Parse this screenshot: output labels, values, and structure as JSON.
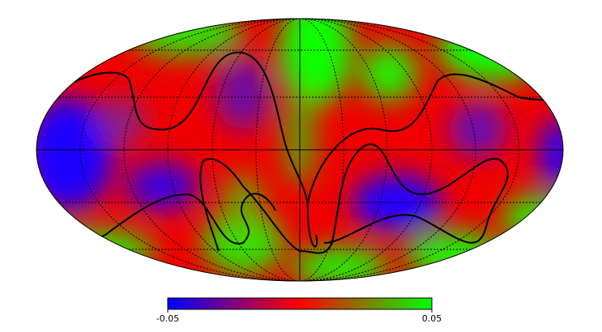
{
  "colorbar": {
    "lim": [
      -0.05,
      0.05
    ],
    "ticks": [
      -0.05,
      0.05
    ],
    "colors": [
      "#0000ff",
      "#ff0000",
      "#00ff00"
    ]
  }
}
